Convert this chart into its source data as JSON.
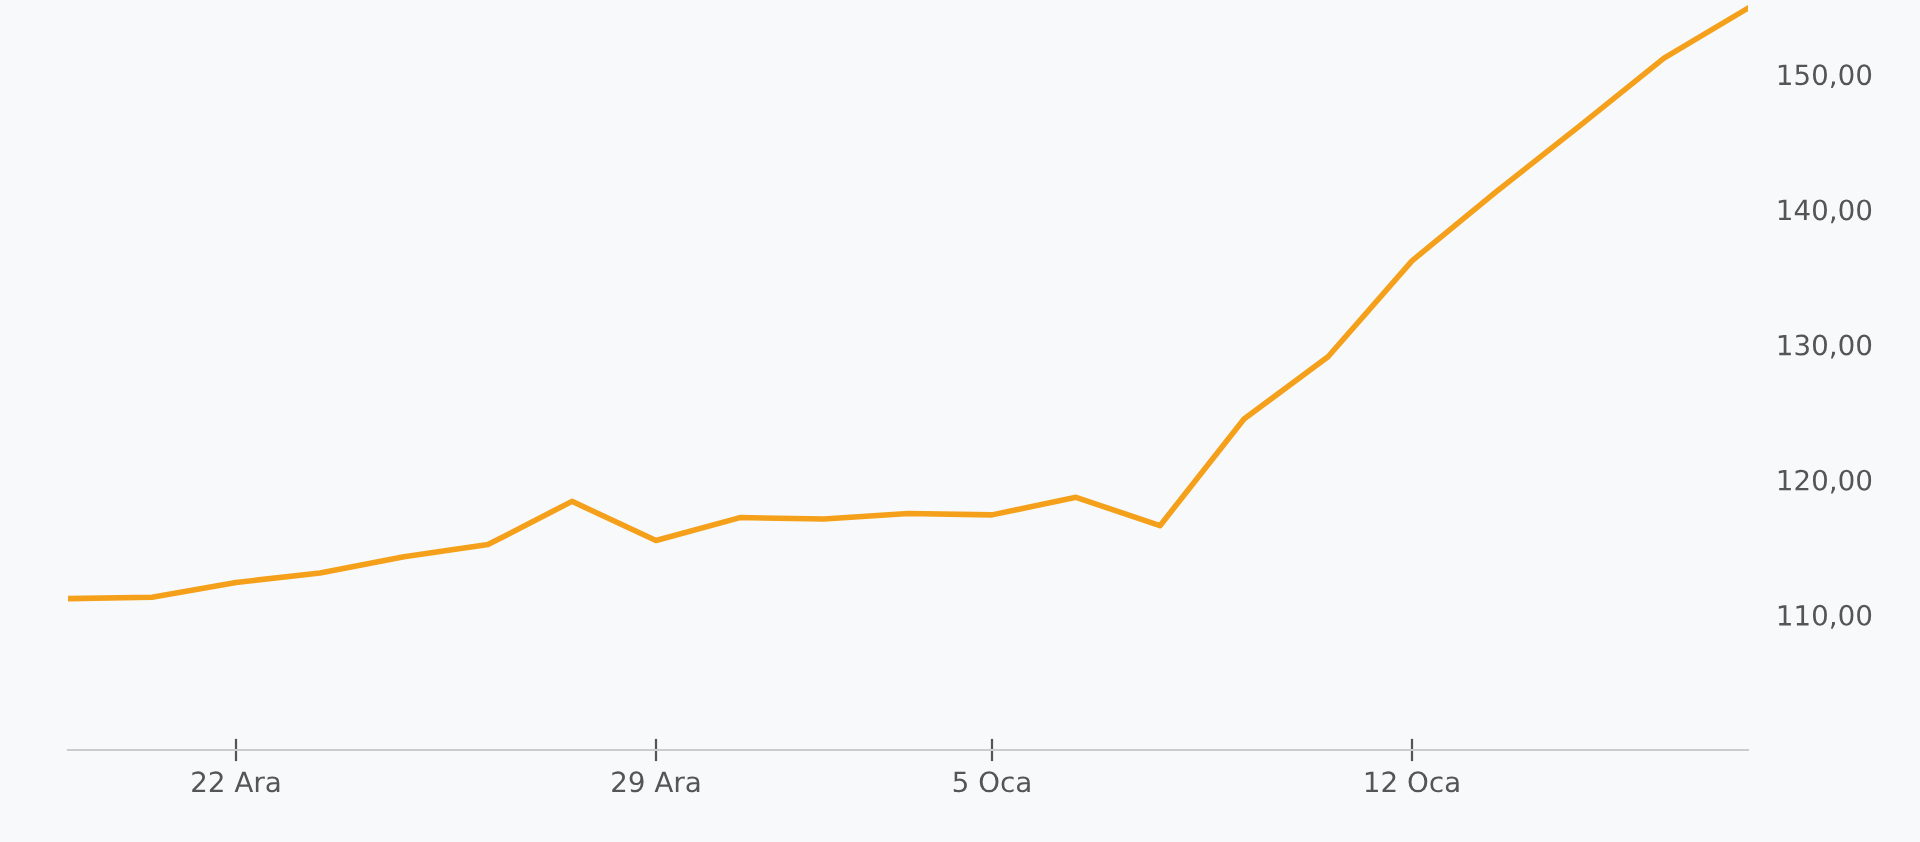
{
  "chart_data": {
    "type": "line",
    "categories": [
      null,
      null,
      "22 Ara",
      null,
      null,
      null,
      null,
      "29 Ara",
      null,
      null,
      null,
      "5 Oca",
      null,
      null,
      null,
      null,
      "12 Oca",
      null,
      null,
      null,
      null
    ],
    "series": [
      {
        "color": "#f5a01a",
        "values": [
          111.2,
          111.3,
          112.4,
          113.1,
          114.3,
          115.2,
          118.4,
          115.5,
          117.2,
          117.1,
          117.5,
          117.4,
          118.7,
          116.6,
          124.5,
          129.1,
          136.2,
          141.3,
          146.2,
          151.2,
          154.9
        ]
      }
    ],
    "ylim": [
      100,
      155.5
    ],
    "yticks": [
      {
        "value": 110,
        "label": "110,00"
      },
      {
        "value": 120,
        "label": "120,00"
      },
      {
        "value": 130,
        "label": "130,00"
      },
      {
        "value": 140,
        "label": "140,00"
      },
      {
        "value": 150,
        "label": "150,00"
      }
    ],
    "grid": false,
    "legend": false,
    "marker": "none",
    "line_style": "solid"
  }
}
